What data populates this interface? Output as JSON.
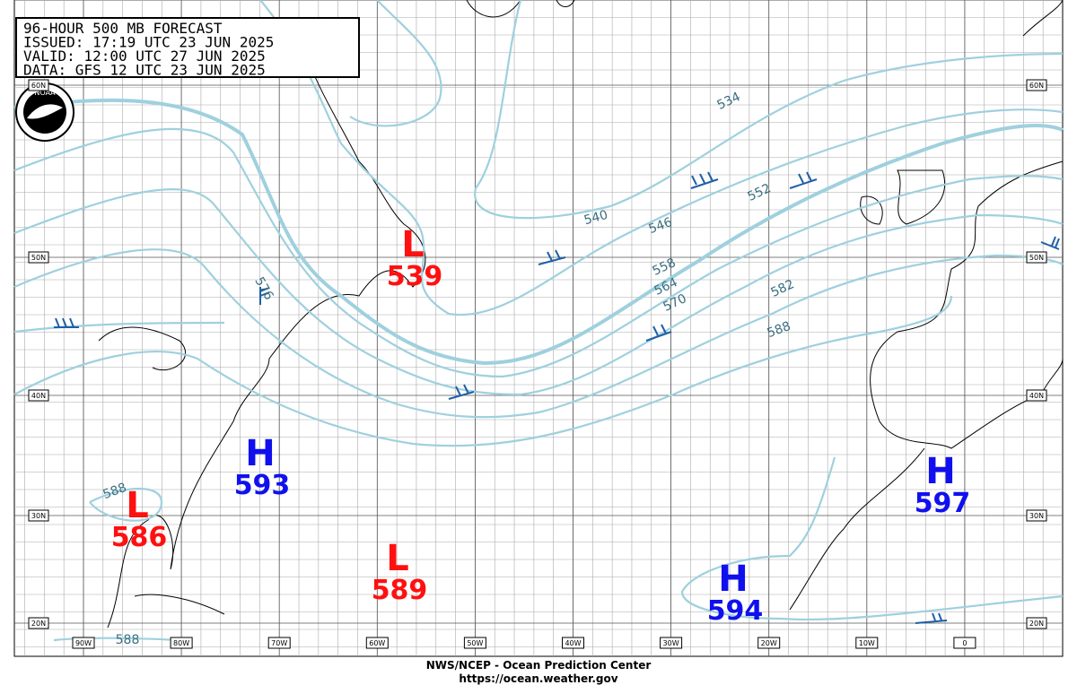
{
  "header": {
    "lines": [
      "96-HOUR 500 MB FORECAST",
      "ISSUED: 17:19 UTC 23 JUN 2025",
      "VALID:  12:00 UTC 27 JUN 2025",
      "DATA:  GFS 12 UTC 23 JUN 2025"
    ]
  },
  "logo": "NOAA",
  "longitudes": [
    "90W",
    "80W",
    "70W",
    "60W",
    "50W",
    "40W",
    "30W",
    "20W",
    "10W",
    "0"
  ],
  "latitudes": [
    "60N",
    "50N",
    "40N",
    "30N",
    "20N"
  ],
  "contour_labels": [
    "534",
    "540",
    "546",
    "552",
    "558",
    "564",
    "570",
    "576",
    "582",
    "588",
    "588",
    "588"
  ],
  "systems": [
    {
      "type": "L",
      "value": "539"
    },
    {
      "type": "H",
      "value": "593"
    },
    {
      "type": "L",
      "value": "586"
    },
    {
      "type": "L",
      "value": "589"
    },
    {
      "type": "H",
      "value": "594"
    },
    {
      "type": "H",
      "value": "597"
    }
  ],
  "footer": [
    "NWS/NCEP - Ocean Prediction Center",
    "https://ocean.weather.gov"
  ]
}
